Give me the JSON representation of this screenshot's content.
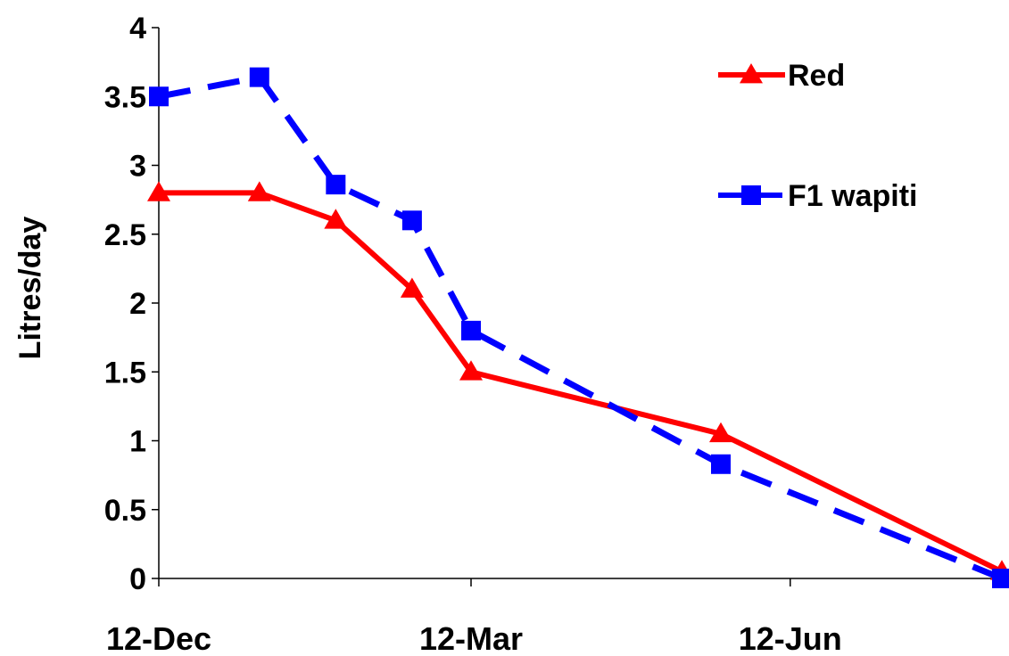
{
  "chart_data": {
    "type": "line",
    "ylabel": "Litres/day",
    "xlabel": "",
    "title": "",
    "ylim": [
      0,
      4
    ],
    "yticks": [
      "0",
      "0.5",
      "1",
      "1.5",
      "2",
      "2.5",
      "3",
      "3.5",
      "4"
    ],
    "xlim": [
      "2006-12-12",
      "2007-08-12"
    ],
    "xticks": [
      {
        "date": "2006-12-12",
        "label": "12-Dec"
      },
      {
        "date": "2007-03-12",
        "label": "12-Mar"
      },
      {
        "date": "2007-06-12",
        "label": "12-Jun"
      }
    ],
    "grid": false,
    "legend_position": "top-right",
    "series": [
      {
        "name": "Red",
        "color": "#ff0000",
        "marker": "triangle",
        "line": "solid",
        "points": [
          {
            "x": "2006-12-12",
            "y": 2.8
          },
          {
            "x": "2007-01-10",
            "y": 2.8
          },
          {
            "x": "2007-02-01",
            "y": 2.6
          },
          {
            "x": "2007-02-23",
            "y": 2.1
          },
          {
            "x": "2007-03-12",
            "y": 1.5
          },
          {
            "x": "2007-05-23",
            "y": 1.05
          },
          {
            "x": "2007-08-12",
            "y": 0.05
          }
        ]
      },
      {
        "name": "F1 wapiti",
        "color": "#0000ff",
        "marker": "square",
        "line": "dashed",
        "points": [
          {
            "x": "2006-12-12",
            "y": 3.5
          },
          {
            "x": "2007-01-10",
            "y": 3.64
          },
          {
            "x": "2007-02-01",
            "y": 2.86
          },
          {
            "x": "2007-02-23",
            "y": 2.6
          },
          {
            "x": "2007-03-12",
            "y": 1.8
          },
          {
            "x": "2007-05-23",
            "y": 0.83
          },
          {
            "x": "2007-08-12",
            "y": 0.0
          }
        ]
      }
    ]
  }
}
